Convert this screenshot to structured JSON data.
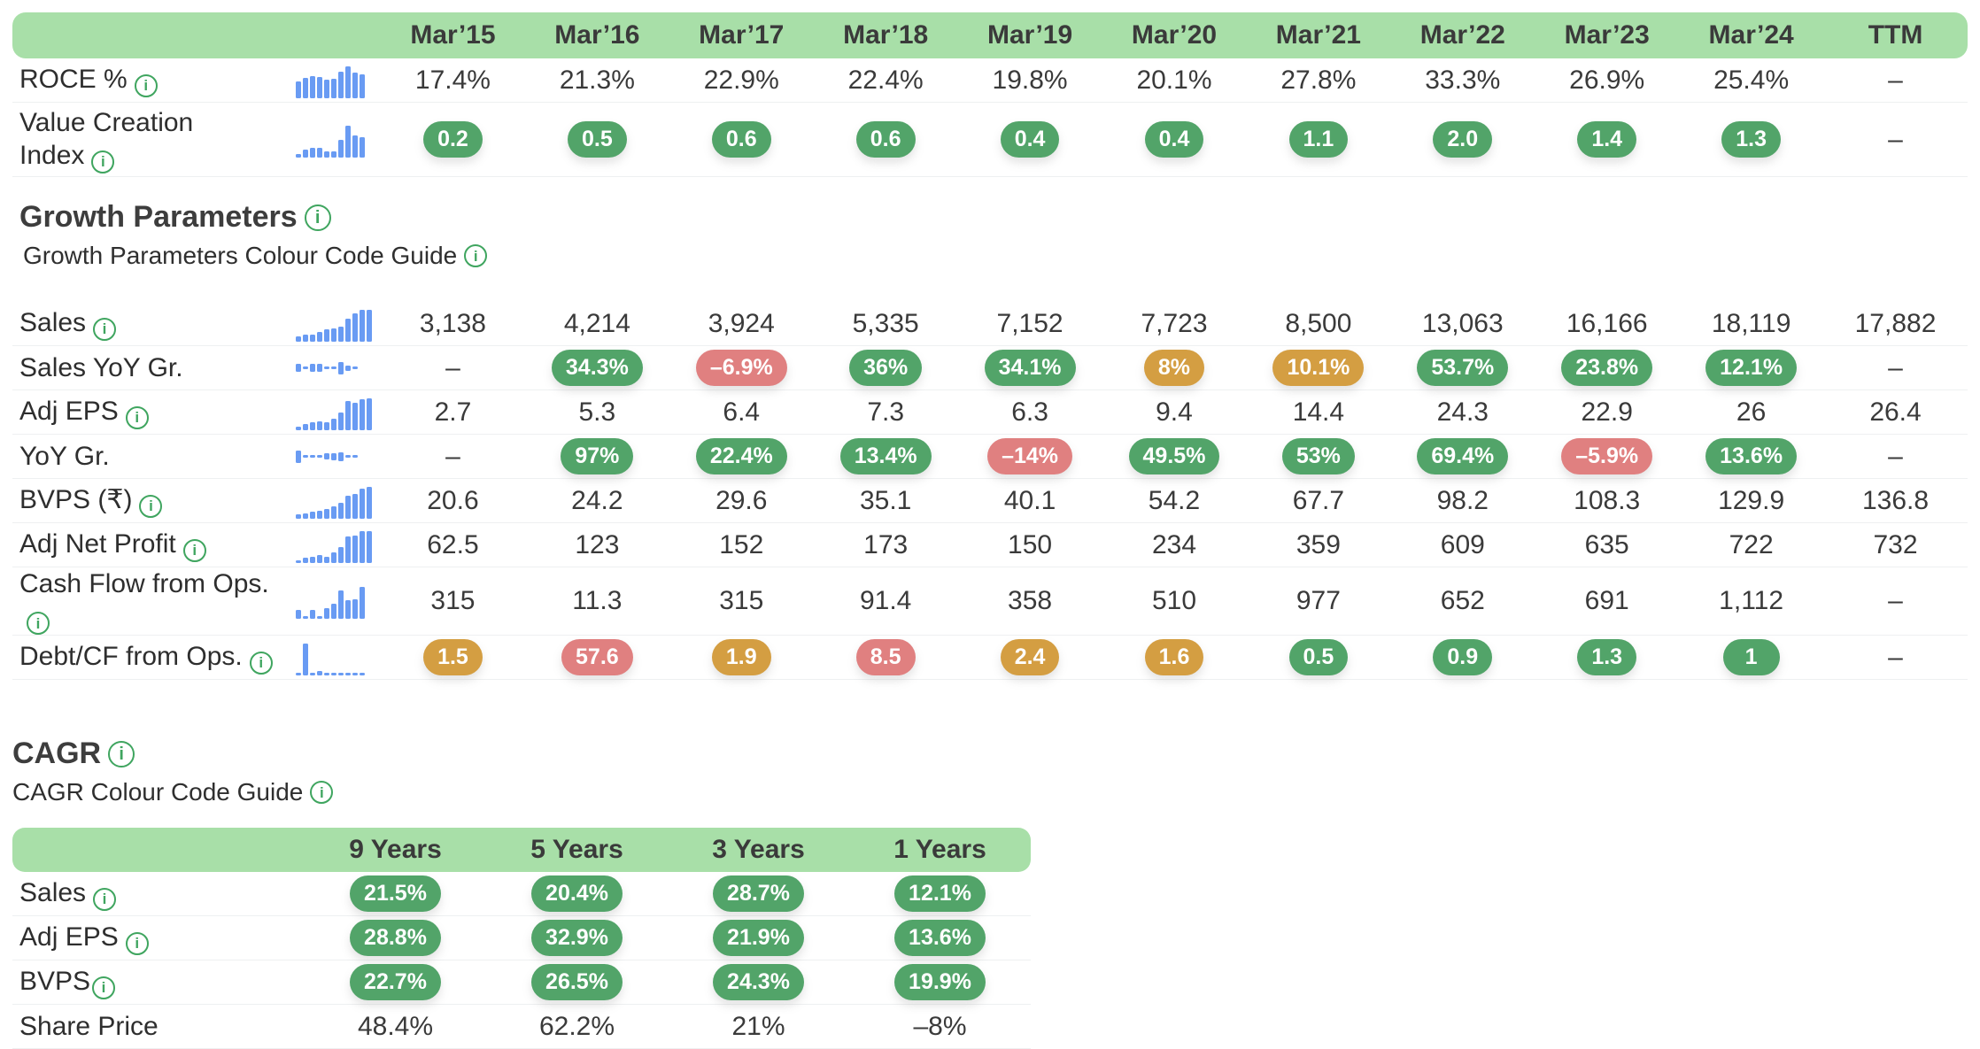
{
  "colors": {
    "header_bg": "#a8dfa8",
    "header_text": "#454879",
    "pill_green": "#52a469",
    "pill_amber": "#d49e42",
    "pill_red": "#e08080",
    "spark_blue": "#699bf3",
    "info_icon_green": "#3fa55f"
  },
  "sections": {
    "growth": {
      "title": "Growth Parameters",
      "guide": "Growth Parameters Colour Code Guide"
    },
    "cagr": {
      "title": "CAGR",
      "guide": "CAGR Colour Code Guide"
    }
  },
  "main_table": {
    "columns": [
      "Mar’15",
      "Mar’16",
      "Mar’17",
      "Mar’18",
      "Mar’19",
      "Mar’20",
      "Mar’21",
      "Mar’22",
      "Mar’23",
      "Mar’24",
      "TTM"
    ],
    "top_rows": [
      {
        "label": "ROCE %",
        "info": true,
        "spark": [
          17.4,
          21.3,
          22.9,
          22.4,
          19.8,
          20.1,
          27.8,
          33.3,
          26.9,
          25.4
        ],
        "cells": [
          {
            "v": "17.4%"
          },
          {
            "v": "21.3%"
          },
          {
            "v": "22.9%"
          },
          {
            "v": "22.4%"
          },
          {
            "v": "19.8%"
          },
          {
            "v": "20.1%"
          },
          {
            "v": "27.8%"
          },
          {
            "v": "33.3%"
          },
          {
            "v": "26.9%"
          },
          {
            "v": "25.4%"
          },
          {
            "v": "–"
          }
        ]
      },
      {
        "label": "Value Creation Index",
        "info": true,
        "wrap": true,
        "spark": [
          0.2,
          0.5,
          0.6,
          0.6,
          0.4,
          0.4,
          1.1,
          2.0,
          1.4,
          1.3
        ],
        "cells": [
          {
            "v": "0.2",
            "pill": "green"
          },
          {
            "v": "0.5",
            "pill": "green"
          },
          {
            "v": "0.6",
            "pill": "green"
          },
          {
            "v": "0.6",
            "pill": "green"
          },
          {
            "v": "0.4",
            "pill": "green"
          },
          {
            "v": "0.4",
            "pill": "green"
          },
          {
            "v": "1.1",
            "pill": "green"
          },
          {
            "v": "2.0",
            "pill": "green"
          },
          {
            "v": "1.4",
            "pill": "green"
          },
          {
            "v": "1.3",
            "pill": "green"
          },
          {
            "v": "–"
          }
        ]
      }
    ],
    "growth_rows": [
      {
        "label": "Sales",
        "info": true,
        "spark": [
          3138,
          4214,
          3924,
          5335,
          7152,
          7723,
          8500,
          13063,
          16166,
          18119,
          17882
        ],
        "cells": [
          {
            "v": "3,138"
          },
          {
            "v": "4,214"
          },
          {
            "v": "3,924"
          },
          {
            "v": "5,335"
          },
          {
            "v": "7,152"
          },
          {
            "v": "7,723"
          },
          {
            "v": "8,500"
          },
          {
            "v": "13,063"
          },
          {
            "v": "16,166"
          },
          {
            "v": "18,119"
          },
          {
            "v": "17,882"
          }
        ]
      },
      {
        "label": "Sales YoY Gr.",
        "info": false,
        "spark": [
          null,
          34.3,
          -6.9,
          36,
          34.1,
          8,
          10.1,
          53.7,
          23.8,
          12.1
        ],
        "cells": [
          {
            "v": "–"
          },
          {
            "v": "34.3%",
            "pill": "green"
          },
          {
            "v": "–6.9%",
            "pill": "red"
          },
          {
            "v": "36%",
            "pill": "green"
          },
          {
            "v": "34.1%",
            "pill": "green"
          },
          {
            "v": "8%",
            "pill": "amber"
          },
          {
            "v": "10.1%",
            "pill": "amber"
          },
          {
            "v": "53.7%",
            "pill": "green"
          },
          {
            "v": "23.8%",
            "pill": "green"
          },
          {
            "v": "12.1%",
            "pill": "green"
          },
          {
            "v": "–"
          }
        ]
      },
      {
        "label": "Adj EPS",
        "info": true,
        "spark": [
          2.7,
          5.3,
          6.4,
          7.3,
          6.3,
          9.4,
          14.4,
          24.3,
          22.9,
          26,
          26.4
        ],
        "cells": [
          {
            "v": "2.7"
          },
          {
            "v": "5.3"
          },
          {
            "v": "6.4"
          },
          {
            "v": "7.3"
          },
          {
            "v": "6.3"
          },
          {
            "v": "9.4"
          },
          {
            "v": "14.4"
          },
          {
            "v": "24.3"
          },
          {
            "v": "22.9"
          },
          {
            "v": "26"
          },
          {
            "v": "26.4"
          }
        ]
      },
      {
        "label": "YoY Gr.",
        "info": false,
        "spark": [
          null,
          97,
          22.4,
          13.4,
          -14,
          49.5,
          53,
          69.4,
          -5.9,
          13.6
        ],
        "cells": [
          {
            "v": "–"
          },
          {
            "v": "97%",
            "pill": "green"
          },
          {
            "v": "22.4%",
            "pill": "green"
          },
          {
            "v": "13.4%",
            "pill": "green"
          },
          {
            "v": "–14%",
            "pill": "red"
          },
          {
            "v": "49.5%",
            "pill": "green"
          },
          {
            "v": "53%",
            "pill": "green"
          },
          {
            "v": "69.4%",
            "pill": "green"
          },
          {
            "v": "–5.9%",
            "pill": "red"
          },
          {
            "v": "13.6%",
            "pill": "green"
          },
          {
            "v": "–"
          }
        ]
      },
      {
        "label": "BVPS (₹)",
        "info": true,
        "spark": [
          20.6,
          24.2,
          29.6,
          35.1,
          40.1,
          54.2,
          67.7,
          98.2,
          108.3,
          129.9,
          136.8
        ],
        "cells": [
          {
            "v": "20.6"
          },
          {
            "v": "24.2"
          },
          {
            "v": "29.6"
          },
          {
            "v": "35.1"
          },
          {
            "v": "40.1"
          },
          {
            "v": "54.2"
          },
          {
            "v": "67.7"
          },
          {
            "v": "98.2"
          },
          {
            "v": "108.3"
          },
          {
            "v": "129.9"
          },
          {
            "v": "136.8"
          }
        ]
      },
      {
        "label": "Adj Net Profit",
        "info": true,
        "spark": [
          62.5,
          123,
          152,
          173,
          150,
          234,
          359,
          609,
          635,
          722,
          732
        ],
        "cells": [
          {
            "v": "62.5"
          },
          {
            "v": "123"
          },
          {
            "v": "152"
          },
          {
            "v": "173"
          },
          {
            "v": "150"
          },
          {
            "v": "234"
          },
          {
            "v": "359"
          },
          {
            "v": "609"
          },
          {
            "v": "635"
          },
          {
            "v": "722"
          },
          {
            "v": "732"
          }
        ]
      },
      {
        "label": "Cash Flow from Ops.",
        "info": true,
        "spark": [
          315,
          11.3,
          315,
          91.4,
          358,
          510,
          977,
          652,
          691,
          1112
        ],
        "cells": [
          {
            "v": "315"
          },
          {
            "v": "11.3"
          },
          {
            "v": "315"
          },
          {
            "v": "91.4"
          },
          {
            "v": "358"
          },
          {
            "v": "510"
          },
          {
            "v": "977"
          },
          {
            "v": "652"
          },
          {
            "v": "691"
          },
          {
            "v": "1,112"
          },
          {
            "v": "–"
          }
        ]
      },
      {
        "label": "Debt/CF from Ops.",
        "info": true,
        "spark": [
          1.5,
          57.6,
          1.9,
          8.5,
          2.4,
          1.6,
          0.5,
          0.9,
          1.3,
          1
        ],
        "cells": [
          {
            "v": "1.5",
            "pill": "amber"
          },
          {
            "v": "57.6",
            "pill": "red"
          },
          {
            "v": "1.9",
            "pill": "amber"
          },
          {
            "v": "8.5",
            "pill": "red"
          },
          {
            "v": "2.4",
            "pill": "amber"
          },
          {
            "v": "1.6",
            "pill": "amber"
          },
          {
            "v": "0.5",
            "pill": "green"
          },
          {
            "v": "0.9",
            "pill": "green"
          },
          {
            "v": "1.3",
            "pill": "green"
          },
          {
            "v": "1",
            "pill": "green"
          },
          {
            "v": "–"
          }
        ]
      }
    ]
  },
  "cagr_table": {
    "columns": [
      "9 Years",
      "5 Years",
      "3 Years",
      "1 Years"
    ],
    "rows": [
      {
        "label": "Sales",
        "info": true,
        "cells": [
          {
            "v": "21.5%",
            "pill": "green"
          },
          {
            "v": "20.4%",
            "pill": "green"
          },
          {
            "v": "28.7%",
            "pill": "green"
          },
          {
            "v": "12.1%",
            "pill": "green"
          }
        ]
      },
      {
        "label": "Adj EPS",
        "info": true,
        "cells": [
          {
            "v": "28.8%",
            "pill": "green"
          },
          {
            "v": "32.9%",
            "pill": "green"
          },
          {
            "v": "21.9%",
            "pill": "green"
          },
          {
            "v": "13.6%",
            "pill": "green"
          }
        ]
      },
      {
        "label": "BVPS",
        "info": true,
        "tight": true,
        "cells": [
          {
            "v": "22.7%",
            "pill": "green"
          },
          {
            "v": "26.5%",
            "pill": "green"
          },
          {
            "v": "24.3%",
            "pill": "green"
          },
          {
            "v": "19.9%",
            "pill": "green"
          }
        ]
      },
      {
        "label": "Share Price",
        "info": false,
        "cells": [
          {
            "v": "48.4%"
          },
          {
            "v": "62.2%"
          },
          {
            "v": "21%"
          },
          {
            "v": "–8%"
          }
        ]
      }
    ]
  }
}
